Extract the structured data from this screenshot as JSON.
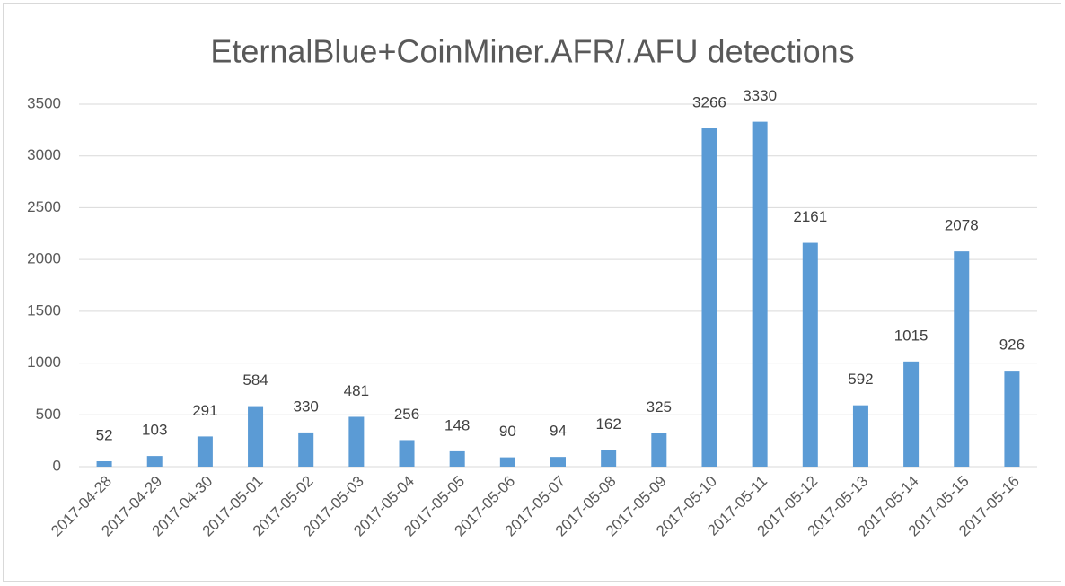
{
  "chart_data": {
    "type": "bar",
    "title": "EternalBlue+CoinMiner.AFR/.AFU detections",
    "categories": [
      "2017-04-28",
      "2017-04-29",
      "2017-04-30",
      "2017-05-01",
      "2017-05-02",
      "2017-05-03",
      "2017-05-04",
      "2017-05-05",
      "2017-05-06",
      "2017-05-07",
      "2017-05-08",
      "2017-05-09",
      "2017-05-10",
      "2017-05-11",
      "2017-05-12",
      "2017-05-13",
      "2017-05-14",
      "2017-05-15",
      "2017-05-16"
    ],
    "values": [
      52,
      103,
      291,
      584,
      330,
      481,
      256,
      148,
      90,
      94,
      162,
      325,
      3266,
      3330,
      2161,
      592,
      1015,
      2078,
      926
    ],
    "color": "#5b9bd5",
    "ylim": [
      0,
      3500
    ],
    "yticks": [
      0,
      500,
      1000,
      1500,
      2000,
      2500,
      3000,
      3500
    ],
    "grid": true
  }
}
